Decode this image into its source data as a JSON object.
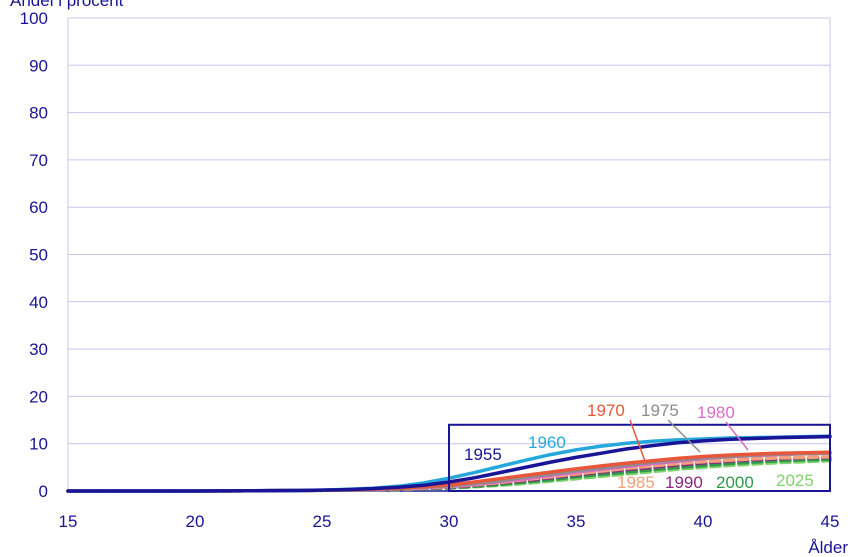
{
  "chart_data": {
    "type": "line",
    "ylabel": "Andel i procent",
    "xlabel": "Ålder",
    "xlim": [
      15,
      45
    ],
    "ylim": [
      0,
      100
    ],
    "xticks": [
      15,
      20,
      25,
      30,
      35,
      40,
      45
    ],
    "yticks": [
      0,
      10,
      20,
      30,
      40,
      50,
      60,
      70,
      80,
      90,
      100
    ],
    "grid": true,
    "legend": "inline labels inside zoom box",
    "zoom_box": {
      "x": [
        30,
        45
      ],
      "y": [
        0,
        14
      ]
    },
    "x": [
      15,
      20,
      22,
      24,
      25,
      26,
      27,
      28,
      29,
      30,
      31,
      32,
      33,
      34,
      35,
      36,
      37,
      38,
      39,
      40,
      41,
      42,
      43,
      44,
      45
    ],
    "series": [
      {
        "name": "1955",
        "color": "#1a1496",
        "dash": "solid",
        "values": [
          0,
          0,
          0.05,
          0.1,
          0.2,
          0.3,
          0.5,
          0.8,
          1.2,
          1.9,
          2.8,
          3.9,
          5.0,
          6.1,
          7.1,
          8.0,
          8.9,
          9.6,
          10.2,
          10.6,
          10.9,
          11.1,
          11.3,
          11.4,
          11.5
        ]
      },
      {
        "name": "1960",
        "color": "#24a8dc",
        "dash": "solid",
        "values": [
          0,
          0,
          0.05,
          0.1,
          0.2,
          0.35,
          0.6,
          1.0,
          1.7,
          2.7,
          3.9,
          5.2,
          6.5,
          7.7,
          8.7,
          9.5,
          10.1,
          10.5,
          10.8,
          11.0,
          11.2,
          11.3,
          11.4,
          11.5,
          11.6
        ]
      },
      {
        "name": "1970",
        "color": "#e8573c",
        "dash": "solid",
        "values": [
          0,
          0,
          0.05,
          0.1,
          0.15,
          0.25,
          0.4,
          0.6,
          0.9,
          1.3,
          1.9,
          2.6,
          3.3,
          4.0,
          4.7,
          5.3,
          5.9,
          6.4,
          6.9,
          7.3,
          7.6,
          7.8,
          8.0,
          8.1,
          8.2
        ]
      },
      {
        "name": "1975",
        "color": "#8c8c8c",
        "dash": "solid",
        "values": [
          0,
          0,
          0.05,
          0.1,
          0.15,
          0.2,
          0.35,
          0.5,
          0.8,
          1.1,
          1.6,
          2.2,
          2.9,
          3.6,
          4.3,
          4.9,
          5.5,
          6.1,
          6.6,
          7.0,
          7.3,
          7.6,
          7.8,
          7.9,
          8.0
        ]
      },
      {
        "name": "1980",
        "color": "#d66ec8",
        "dash": "solid",
        "values": [
          0,
          0,
          0.05,
          0.1,
          0.15,
          0.2,
          0.3,
          0.5,
          0.7,
          1.0,
          1.4,
          2.0,
          2.6,
          3.3,
          4.0,
          4.6,
          5.2,
          5.8,
          6.3,
          6.8,
          7.2,
          7.5,
          7.7,
          7.9,
          8.0
        ]
      },
      {
        "name": "1985",
        "color": "#f4a07a",
        "dash": "dashed",
        "values": [
          0,
          0,
          0.05,
          0.1,
          0.15,
          0.2,
          0.3,
          0.45,
          0.6,
          0.9,
          1.3,
          1.8,
          2.4,
          3.0,
          3.6,
          4.2,
          4.8,
          5.3,
          5.8,
          6.2,
          6.5,
          6.8,
          7.0,
          7.1,
          7.2
        ]
      },
      {
        "name": "1990",
        "color": "#8b2a7a",
        "dash": "dashed",
        "values": [
          0,
          0,
          0.05,
          0.1,
          0.15,
          0.2,
          0.3,
          0.4,
          0.55,
          0.8,
          1.2,
          1.7,
          2.2,
          2.8,
          3.4,
          4.0,
          4.5,
          5.0,
          5.5,
          5.9,
          6.3,
          6.6,
          6.8,
          7.0,
          7.1
        ]
      },
      {
        "name": "2000",
        "color": "#2e9a4a",
        "dash": "dashed",
        "values": [
          0,
          0,
          0.05,
          0.1,
          0.15,
          0.2,
          0.25,
          0.35,
          0.5,
          0.7,
          1.0,
          1.4,
          1.9,
          2.4,
          3.0,
          3.5,
          4.0,
          4.5,
          5.0,
          5.4,
          5.8,
          6.1,
          6.4,
          6.6,
          6.7
        ]
      },
      {
        "name": "2025",
        "color": "#7ed36a",
        "dash": "dashed",
        "values": [
          0,
          0,
          0.05,
          0.1,
          0.15,
          0.2,
          0.25,
          0.3,
          0.45,
          0.6,
          0.9,
          1.2,
          1.6,
          2.1,
          2.6,
          3.1,
          3.6,
          4.1,
          4.6,
          5.0,
          5.4,
          5.7,
          6.0,
          6.2,
          6.4
        ]
      }
    ]
  },
  "colors": {
    "axis_text": "#1a1496",
    "grid": "#c9c4ef",
    "box": "#1a1496"
  }
}
